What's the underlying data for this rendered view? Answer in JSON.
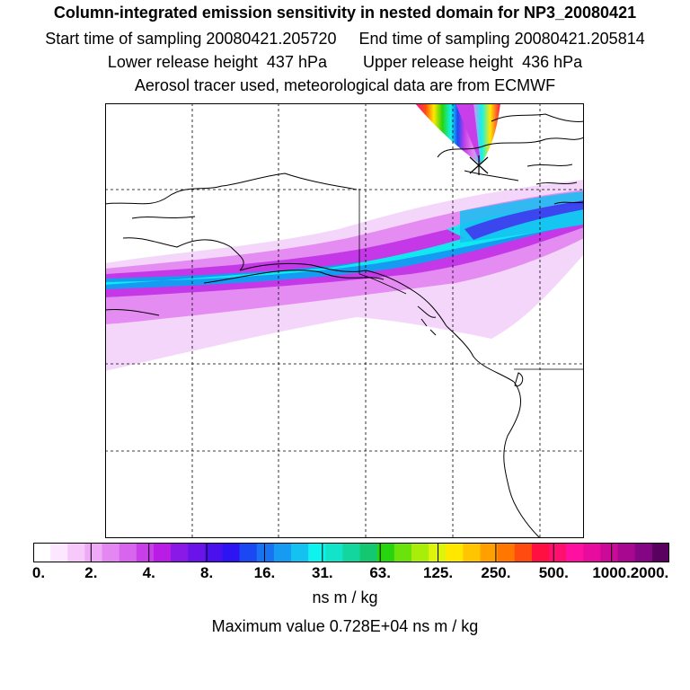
{
  "header": {
    "title": "Column-integrated emission sensitivity in nested domain for NP3_20080421",
    "line2": "Start time of sampling 20080421.205720     End time of sampling 20080421.205814",
    "line3": "Lower release height  437 hPa        Upper release height  436 hPa",
    "line4": "Aerosol tracer used, meteorological data are from ECMWF"
  },
  "colorbar": {
    "colors": [
      "#ffffff",
      "#fde6ff",
      "#f7c9fb",
      "#efaaf7",
      "#e487f3",
      "#d765ee",
      "#c83ee8",
      "#b91ce4",
      "#8a18e6",
      "#6a14ea",
      "#4b10ee",
      "#2e14f2",
      "#1c48f4",
      "#1873f3",
      "#169bf2",
      "#14c1f1",
      "#0ff2ee",
      "#11e4c8",
      "#13d69e",
      "#14c872",
      "#27d40e",
      "#6ce20c",
      "#a9ed0a",
      "#def40c",
      "#ffe800",
      "#ffc500",
      "#ff9f00",
      "#ff7600",
      "#ff4a10",
      "#ff1040",
      "#ff1070",
      "#ff10a0",
      "#e80c9e",
      "#cc0a98",
      "#a80890",
      "#840684",
      "#5a0060"
    ],
    "labels": [
      "0.",
      "2.",
      "4.",
      "8.",
      "16.",
      "31.",
      "63.",
      "125.",
      "250.",
      "500.",
      "1000.",
      "2000."
    ],
    "units": "ns m / kg"
  },
  "footer": {
    "max_value": "Maximum value  0.728E+04 ns m / kg"
  }
}
